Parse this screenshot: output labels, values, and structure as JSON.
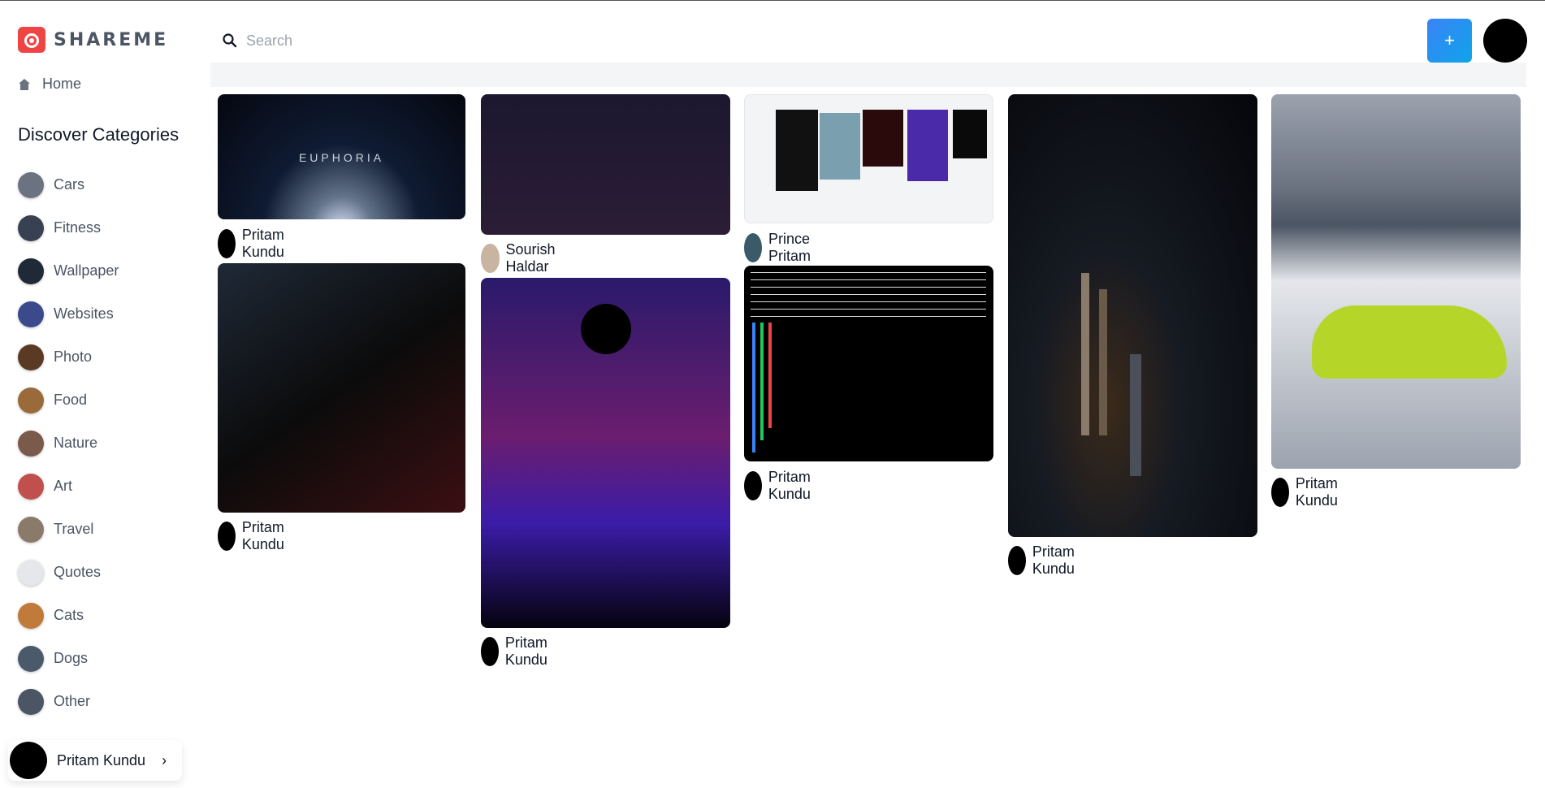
{
  "app": {
    "name": "SHAREME"
  },
  "sidebar": {
    "home_label": "Home",
    "categories_title": "Discover Categories",
    "categories": [
      {
        "label": "Cars",
        "color": "#6b7280"
      },
      {
        "label": "Fitness",
        "color": "#374151"
      },
      {
        "label": "Wallpaper",
        "color": "#1f2937"
      },
      {
        "label": "Websites",
        "color": "#3b4a8a"
      },
      {
        "label": "Photo",
        "color": "#5b3a24"
      },
      {
        "label": "Food",
        "color": "#9a6a3a"
      },
      {
        "label": "Nature",
        "color": "#7a5a4a"
      },
      {
        "label": "Art",
        "color": "#c0504d"
      },
      {
        "label": "Travel",
        "color": "#8a7a6a"
      },
      {
        "label": "Quotes",
        "color": "#e5e7eb"
      },
      {
        "label": "Cats",
        "color": "#c07a3a"
      },
      {
        "label": "Dogs",
        "color": "#4a5a6a"
      },
      {
        "label": "Other",
        "color": "#4b5563"
      }
    ],
    "user": {
      "name": "Pritam Kundu"
    }
  },
  "header": {
    "search_placeholder": "Search",
    "add_label": "+"
  },
  "pins": [
    {
      "author": "Pritam Kundu",
      "image_text": "EUPHORIA"
    },
    {
      "author": "Pritam Kundu"
    },
    {
      "author": "Sourish Haldar"
    },
    {
      "author": "Pritam Kundu"
    },
    {
      "author": "Prince Pritam"
    },
    {
      "author": "Pritam Kundu"
    },
    {
      "author": "Pritam Kundu"
    },
    {
      "author": "Pritam Kundu"
    }
  ]
}
